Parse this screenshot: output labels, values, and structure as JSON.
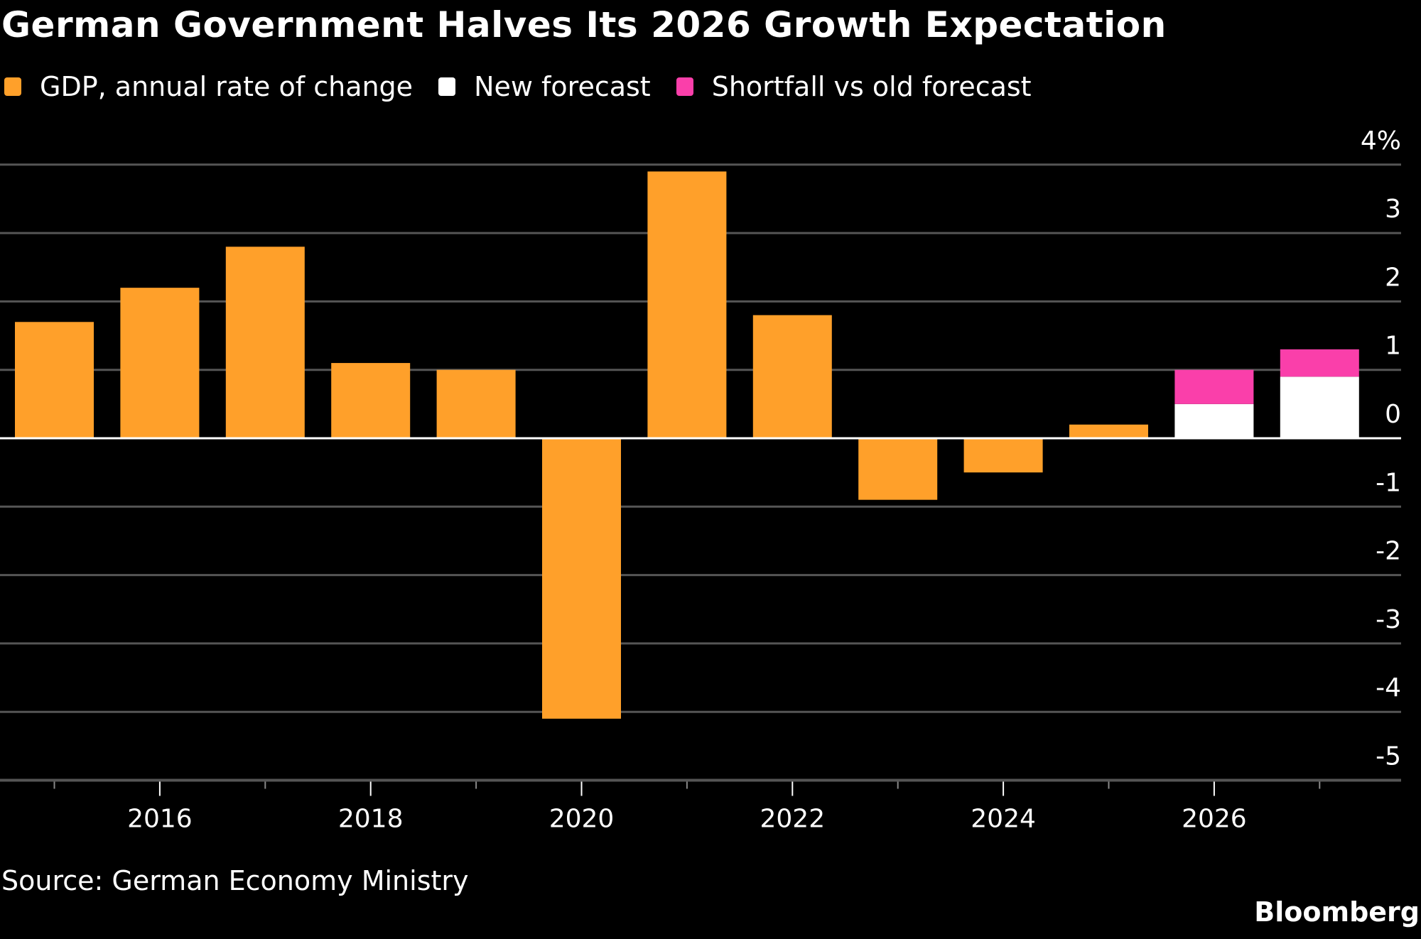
{
  "chart_data": {
    "type": "bar",
    "stacked": true,
    "title": "German Government Halves Its 2026 Growth Expectation",
    "xlabel": "",
    "ylabel": "",
    "y_unit_label": "%",
    "ylim": [
      -5,
      4
    ],
    "yticks": [
      4,
      3,
      2,
      1,
      0,
      -1,
      -2,
      -3,
      -4,
      -5
    ],
    "ytick_labels": [
      "4%",
      "3",
      "2",
      "1",
      "0",
      "-1",
      "-2",
      "-3",
      "-4",
      "-5"
    ],
    "categories": [
      "2015",
      "2016",
      "2017",
      "2018",
      "2019",
      "2020",
      "2021",
      "2022",
      "2023",
      "2024",
      "2025",
      "2026",
      "2027"
    ],
    "xtick_labels": [
      "2016",
      "2018",
      "2020",
      "2022",
      "2024",
      "2026"
    ],
    "grid": true,
    "legend_position": "top-left",
    "series": [
      {
        "name": "GDP, annual rate of change",
        "color": "#FFA02A",
        "values": [
          1.7,
          2.2,
          2.8,
          1.1,
          1.0,
          -4.1,
          3.9,
          1.8,
          -0.9,
          -0.5,
          0.2,
          null,
          null
        ]
      },
      {
        "name": "New forecast",
        "color": "#FFFFFF",
        "values": [
          null,
          null,
          null,
          null,
          null,
          null,
          null,
          null,
          null,
          null,
          null,
          0.5,
          0.9
        ]
      },
      {
        "name": "Shortfall vs old forecast",
        "color": "#FA3FAA",
        "values": [
          null,
          null,
          null,
          null,
          null,
          null,
          null,
          null,
          null,
          null,
          null,
          0.5,
          0.4
        ]
      }
    ],
    "source": "Source: German Economy Ministry",
    "brand": "Bloomberg"
  },
  "colors": {
    "background": "#000000",
    "gdp": "#FFA02A",
    "new_forecast": "#FFFFFF",
    "shortfall": "#FA3FAA",
    "grid": "#555555",
    "zero_line": "#FFFFFF"
  }
}
